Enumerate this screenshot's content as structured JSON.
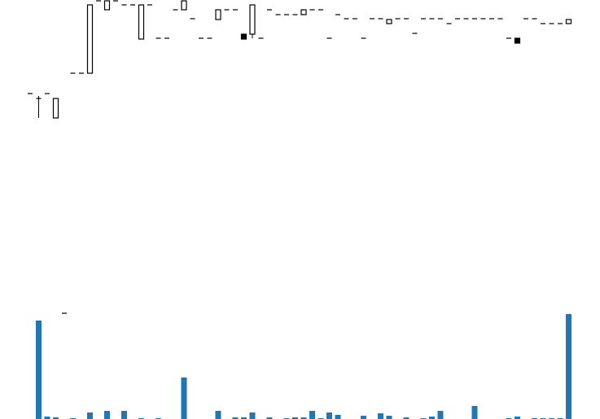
{
  "chart_data": {
    "type": "candlestick",
    "open": [
      285,
      279,
      285,
      255,
      15,
      310,
      310,
      310,
      399,
      388,
      399,
      394,
      394,
      352,
      394,
      353,
      353,
      388,
      388,
      377,
      353,
      353,
      376,
      388,
      388,
      358,
      358,
      353,
      388,
      382,
      382,
      382,
      382,
      388,
      388,
      353,
      382,
      377,
      377,
      353,
      377,
      377,
      371,
      377,
      377,
      359,
      377,
      377,
      377,
      371,
      377,
      377,
      377,
      377,
      377,
      377,
      353,
      353,
      377,
      377,
      371,
      371,
      371,
      371
    ],
    "high": [
      285,
      282,
      285,
      279,
      15,
      310,
      310,
      394,
      399,
      399,
      399,
      394,
      394,
      394,
      394,
      353,
      353,
      388,
      399,
      377,
      353,
      353,
      388,
      388,
      388,
      358,
      394,
      353,
      388,
      382,
      382,
      382,
      388,
      388,
      388,
      353,
      382,
      377,
      377,
      353,
      377,
      377,
      376,
      377,
      377,
      359,
      377,
      377,
      377,
      371,
      377,
      377,
      377,
      377,
      377,
      377,
      353,
      353,
      377,
      377,
      371,
      371,
      371,
      376
    ],
    "low": [
      285,
      255,
      285,
      255,
      15,
      310,
      310,
      310,
      399,
      388,
      399,
      394,
      394,
      352,
      394,
      353,
      353,
      388,
      388,
      377,
      353,
      353,
      376,
      388,
      388,
      352,
      353,
      353,
      388,
      382,
      382,
      382,
      382,
      388,
      388,
      353,
      382,
      377,
      377,
      353,
      377,
      377,
      371,
      377,
      377,
      359,
      377,
      377,
      377,
      371,
      377,
      377,
      377,
      377,
      377,
      377,
      353,
      347,
      377,
      377,
      371,
      371,
      371,
      371
    ],
    "close": [
      285,
      279,
      285,
      279,
      15,
      310,
      310,
      394,
      399,
      399,
      399,
      394,
      394,
      394,
      394,
      353,
      353,
      388,
      399,
      377,
      353,
      353,
      388,
      388,
      388,
      352,
      394,
      353,
      388,
      382,
      382,
      382,
      388,
      388,
      388,
      353,
      382,
      377,
      377,
      353,
      377,
      377,
      376,
      377,
      377,
      359,
      377,
      377,
      377,
      371,
      377,
      377,
      377,
      377,
      377,
      377,
      353,
      347,
      377,
      377,
      371,
      371,
      371,
      376
    ],
    "ylim": [
      0,
      400
    ],
    "up_color": "#ffffff",
    "down_color": "#000000",
    "edge_color": "#000000",
    "volume": {
      "values": [
        0,
        121,
        3,
        2,
        0,
        1,
        0,
        8,
        0,
        10,
        0,
        10,
        0,
        1,
        0,
        1,
        0,
        0,
        51,
        0,
        0,
        0,
        10,
        0,
        2,
        2,
        8,
        0,
        2,
        0,
        1,
        2,
        2,
        10,
        1,
        8,
        5,
        0,
        0,
        4,
        0,
        7,
        4,
        0,
        2,
        0,
        1,
        3,
        10,
        0,
        0,
        0,
        16,
        0,
        0,
        0,
        1,
        3,
        0,
        1,
        1,
        1,
        1,
        129
      ],
      "color": "#1f77b4",
      "ylim": [
        0,
        130
      ]
    }
  }
}
